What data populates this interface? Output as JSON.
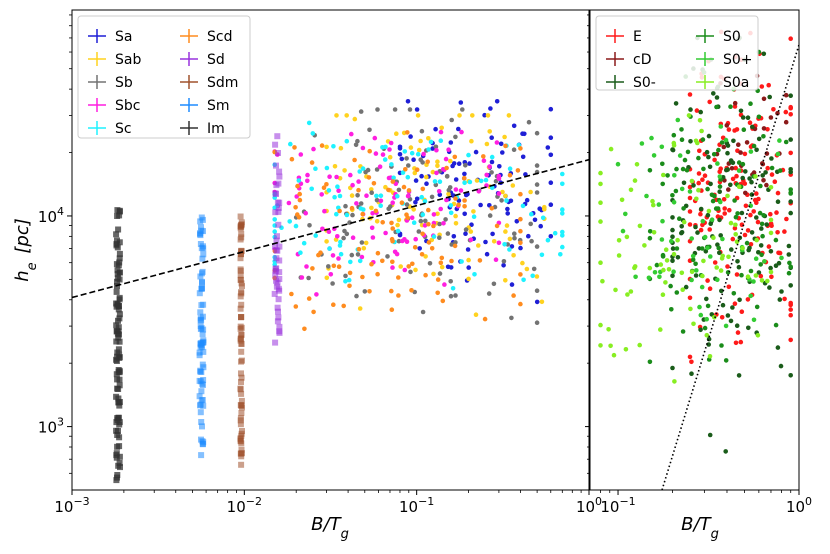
{
  "chart_data": [
    {
      "type": "scatter",
      "panel": "left",
      "xlabel": "B/T_g",
      "ylabel": "h_e [pc]",
      "xscale": "log",
      "yscale": "log",
      "xlim": [
        0.001,
        1
      ],
      "ylim": [
        500,
        95000
      ],
      "x_ticks": [
        {
          "v": 0.001,
          "label": "10^-3"
        },
        {
          "v": 0.01,
          "label": "10^-2"
        },
        {
          "v": 0.1,
          "label": "10^-1"
        },
        {
          "v": 1,
          "label": "10^0"
        }
      ],
      "y_ticks": [
        {
          "v": 1000,
          "label": "10^3"
        },
        {
          "v": 10000,
          "label": "10^4"
        }
      ],
      "legend_position": "top-left",
      "series": [
        {
          "name": "Sa",
          "color": "#1f1fd6",
          "x_range": [
            0.08,
            0.6
          ],
          "y_range": [
            3000,
            35000
          ],
          "n": 110
        },
        {
          "name": "Sab",
          "color": "#ffd21f",
          "x_range": [
            0.03,
            0.55
          ],
          "y_range": [
            2500,
            30000
          ],
          "n": 110
        },
        {
          "name": "Sb",
          "color": "#737373",
          "x_range": [
            0.02,
            0.5
          ],
          "y_range": [
            1800,
            32000
          ],
          "n": 120
        },
        {
          "name": "Sbc",
          "color": "#ff1fe0",
          "x_range": [
            0.015,
            0.3
          ],
          "y_range": [
            3000,
            25000
          ],
          "n": 110
        },
        {
          "name": "Sc",
          "color": "#1ff2ff",
          "x_range": [
            0.015,
            0.7
          ],
          "y_range": [
            2500,
            30000
          ],
          "n": 110
        },
        {
          "name": "Scd",
          "color": "#ff8c1f",
          "x_range": [
            0.015,
            0.4
          ],
          "y_range": [
            1500,
            26000
          ],
          "n": 110
        },
        {
          "name": "Sd",
          "color": "#9933dd",
          "x_range": [
            0.015,
            0.016
          ],
          "y_range": [
            2500,
            25000
          ],
          "n": 45
        },
        {
          "name": "Sdm",
          "color": "#a0522d",
          "x_range": [
            0.0095,
            0.0097
          ],
          "y_range": [
            650,
            10000
          ],
          "n": 75
        },
        {
          "name": "Sm",
          "color": "#1f8cff",
          "x_range": [
            0.0055,
            0.0058
          ],
          "y_range": [
            700,
            10000
          ],
          "n": 75
        },
        {
          "name": "Im",
          "color": "#333333",
          "x_range": [
            0.0018,
            0.0019
          ],
          "y_range": [
            550,
            11000
          ],
          "n": 95
        }
      ],
      "trend_line": {
        "style": "dashed",
        "color": "#000000",
        "points": [
          [
            0.001,
            4100
          ],
          [
            1,
            18500
          ]
        ]
      }
    },
    {
      "type": "scatter",
      "panel": "right",
      "xlabel": "B/T_g",
      "xscale": "log",
      "yscale": "log",
      "xlim": [
        0.07,
        1
      ],
      "ylim": [
        500,
        95000
      ],
      "x_ticks": [
        {
          "v": 0.1,
          "label": "10^-1"
        },
        {
          "v": 1,
          "label": "10^0"
        }
      ],
      "legend_position": "top-left",
      "series": [
        {
          "name": "E",
          "color": "#ff1a1a",
          "x_range": [
            0.25,
            0.9
          ],
          "y_range": [
            1500,
            80000
          ],
          "n": 160
        },
        {
          "name": "cD",
          "color": "#8b1a1a",
          "x_range": [
            0.3,
            0.85
          ],
          "y_range": [
            4000,
            60000
          ],
          "n": 30
        },
        {
          "name": "S0-",
          "color": "#1a5c1a",
          "x_range": [
            0.2,
            0.9
          ],
          "y_range": [
            700,
            70000
          ],
          "n": 150
        },
        {
          "name": "S0",
          "color": "#1a8c1a",
          "x_range": [
            0.15,
            0.9
          ],
          "y_range": [
            1000,
            60000
          ],
          "n": 100
        },
        {
          "name": "S0+",
          "color": "#33cc33",
          "x_range": [
            0.1,
            0.8
          ],
          "y_range": [
            1200,
            40000
          ],
          "n": 60
        },
        {
          "name": "S0a",
          "color": "#88ee22",
          "x_range": [
            0.08,
            0.7
          ],
          "y_range": [
            1000,
            30000
          ],
          "n": 90
        }
      ],
      "trend_line": {
        "style": "dotted",
        "color": "#000000",
        "points": [
          [
            0.175,
            500
          ],
          [
            1,
            65000
          ]
        ]
      }
    }
  ]
}
